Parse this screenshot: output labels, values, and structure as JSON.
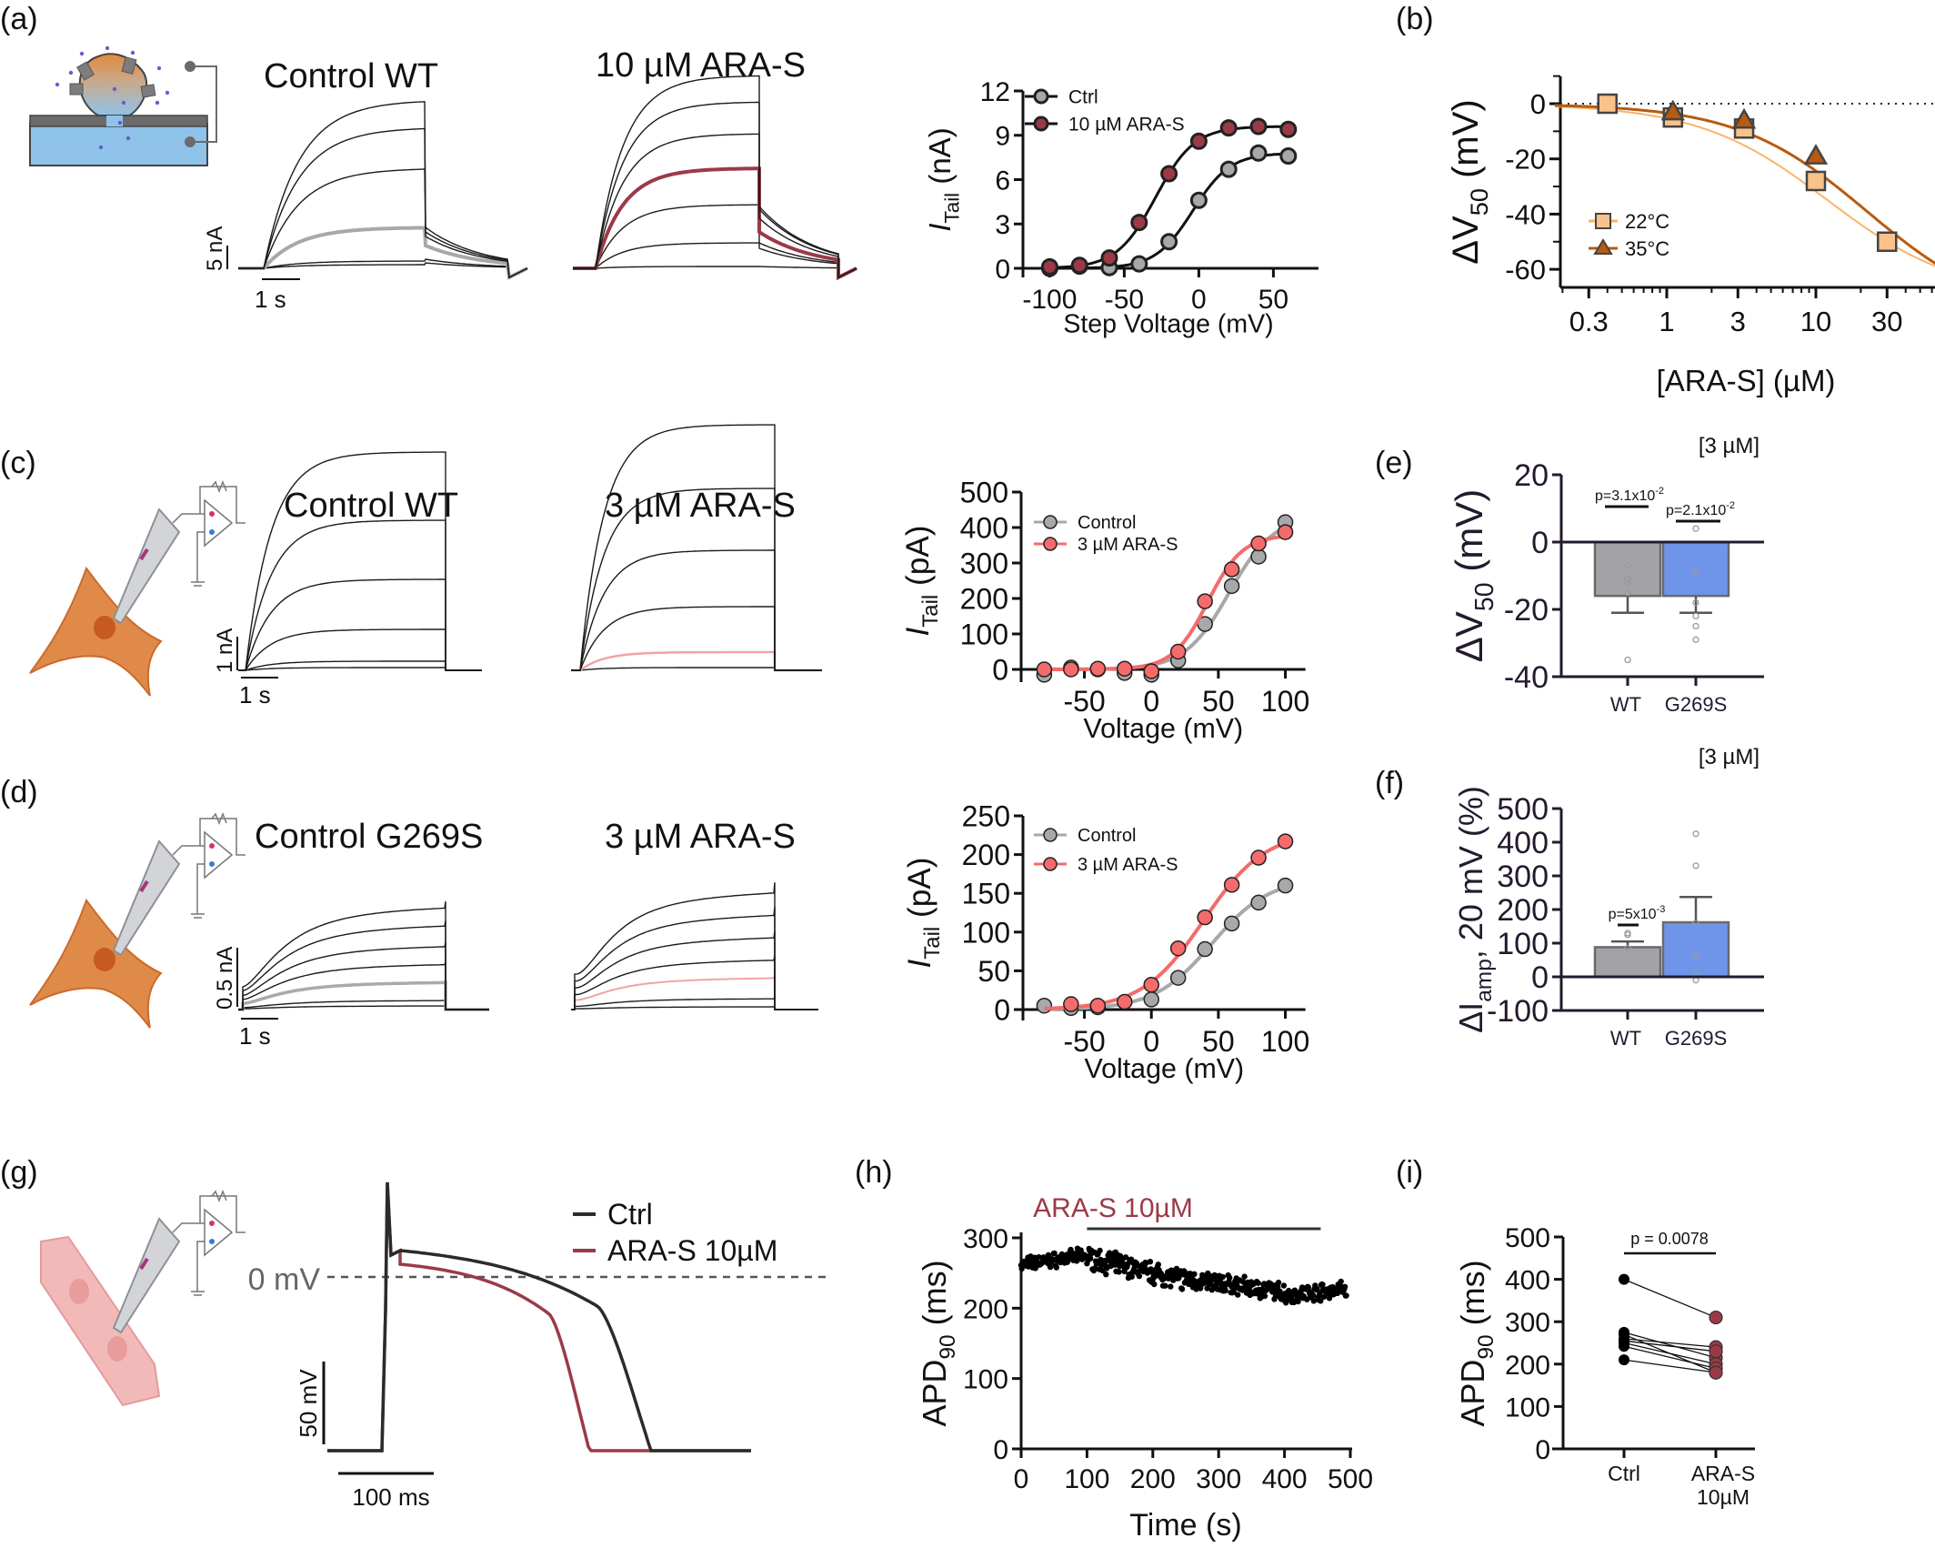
{
  "figure": {
    "panel_labels": [
      "(a)",
      "(b)",
      "(c)",
      "(d)",
      "(e)",
      "(f)",
      "(g)",
      "(h)",
      "(i)"
    ]
  },
  "colors": {
    "ctrl_gray": "#a8a8aa",
    "ara_maroon": "#9b3a47",
    "ara_pink": "#f46b6b",
    "temp22": "#f8c28a",
    "temp35": "#b85a10",
    "temp22_line": "#f9b36a",
    "temp35_line": "#b85a10",
    "bar_wt": "#a3a2a6",
    "bar_g269s": "#6f95ea",
    "axis_dark": "#231a2e",
    "cell_orange": "#e08a4a",
    "cardio_pink": "#f2b9b9"
  },
  "traces": {
    "a_left_title": "Control WT",
    "a_right_title": "10 µM ARA-S",
    "a_scale_y": "5 nA",
    "a_scale_x": "1 s",
    "c_left_title": "Control WT",
    "c_right_title": "3 µM ARA-S",
    "c_scale_y": "1 nA",
    "c_scale_x": "1 s",
    "d_left_title": "Control G269S",
    "d_right_title": "3 µM ARA-S",
    "d_scale_y": "0.5 nA",
    "d_scale_x": "1 s"
  },
  "chart_data": [
    {
      "id": "a_iv",
      "type": "scatter",
      "title": "",
      "xlabel": "Step Voltage (mV)",
      "ylabel_main": "I",
      "ylabel_sub": "Tail",
      "ylabel_unit": " (nA)",
      "xlim": [
        -110,
        65
      ],
      "ylim": [
        0,
        12
      ],
      "xticks": [
        -100,
        -50,
        0,
        50
      ],
      "yticks": [
        0,
        3,
        6,
        9,
        12
      ],
      "x": [
        -100,
        -80,
        -60,
        -40,
        -20,
        0,
        20,
        40,
        60
      ],
      "legend_position": "top-left",
      "series": [
        {
          "name": "Ctrl",
          "color_key": "ctrl_gray",
          "values": [
            0.0,
            0.15,
            0.05,
            0.3,
            1.8,
            4.6,
            6.7,
            7.8,
            7.6
          ]
        },
        {
          "name": "10 µM ARA-S",
          "color_key": "ara_maroon",
          "values": [
            0.1,
            0.2,
            0.7,
            3.1,
            6.4,
            8.6,
            9.5,
            9.6,
            9.4
          ]
        }
      ]
    },
    {
      "id": "b_dose",
      "type": "scatter",
      "xscale": "log",
      "xlabel": "[ARA-S] (µM)",
      "ylabel_main": "ΔV",
      "ylabel_sub": "50",
      "ylabel_unit": " (mV)",
      "xlim": [
        0.19,
        63
      ],
      "ylim": [
        -65,
        10
      ],
      "xticks": [
        0.3,
        1,
        3,
        10,
        30
      ],
      "xtick_labels": [
        "0.3",
        "1",
        "3",
        "10",
        "30"
      ],
      "yticks": [
        0,
        -20,
        -40,
        -60
      ],
      "reference_line": 0,
      "legend_position": "bottom-left",
      "series": [
        {
          "name": "22°C",
          "marker": "square",
          "color_key": "temp22",
          "x": [
            0.4,
            1.1,
            3.3,
            10,
            30
          ],
          "values": [
            0,
            -5,
            -9,
            -28,
            -50
          ],
          "fit": {
            "ic50": 12,
            "max": -70,
            "hill": 1.0
          }
        },
        {
          "name": "35°C",
          "marker": "triangle",
          "color_key": "temp35",
          "x": [
            1.1,
            3.3,
            10
          ],
          "values": [
            -3,
            -6,
            -19
          ],
          "fit": {
            "ic50": 22,
            "max": -78,
            "hill": 1.0
          }
        }
      ]
    },
    {
      "id": "c_iv",
      "type": "scatter",
      "xlabel": "Voltage (mV)",
      "ylabel_main": "I",
      "ylabel_sub": "Tail",
      "ylabel_unit": " (pA)",
      "xlim": [
        -85,
        115
      ],
      "ylim": [
        0,
        500
      ],
      "xticks": [
        -50,
        0,
        50,
        100
      ],
      "yticks": [
        0,
        100,
        200,
        300,
        400,
        500
      ],
      "x": [
        -80,
        -60,
        -40,
        -20,
        0,
        20,
        40,
        60,
        80,
        100
      ],
      "legend_position": "top-left",
      "series": [
        {
          "name": "Control",
          "color_key": "ctrl_gray",
          "values": [
            -15,
            5,
            0,
            -10,
            -15,
            25,
            128,
            235,
            318,
            415
          ]
        },
        {
          "name": "3 µM ARA-S",
          "color_key": "ara_pink",
          "values": [
            0,
            0,
            2,
            2,
            -5,
            50,
            192,
            282,
            355,
            387
          ]
        }
      ]
    },
    {
      "id": "d_iv",
      "type": "scatter",
      "xlabel": "Voltage (mV)",
      "ylabel_main": "I",
      "ylabel_sub": "Tail",
      "ylabel_unit": " (pA)",
      "xlim": [
        -85,
        115
      ],
      "ylim": [
        0,
        250
      ],
      "xticks": [
        -50,
        0,
        50,
        100
      ],
      "yticks": [
        0,
        50,
        100,
        150,
        200,
        250
      ],
      "x": [
        -80,
        -60,
        -40,
        -20,
        0,
        20,
        40,
        60,
        80,
        100
      ],
      "legend_position": "top-left",
      "series": [
        {
          "name": "Control",
          "color_key": "ctrl_gray",
          "values": [
            5,
            2,
            3,
            null,
            13,
            41,
            78,
            111,
            138,
            160
          ]
        },
        {
          "name": "3 µM ARA-S",
          "color_key": "ara_pink",
          "values": [
            null,
            7,
            5,
            10,
            32,
            79,
            119,
            161,
            196,
            217
          ]
        }
      ]
    },
    {
      "id": "e_bar",
      "type": "bar",
      "title": "[3 µM]",
      "ylabel_main": "ΔV",
      "ylabel_sub": "50",
      "ylabel_unit": " (mV)",
      "ylim": [
        -40,
        20
      ],
      "yticks": [
        20,
        0,
        -20,
        -40
      ],
      "categories": [
        "WT",
        "G269S"
      ],
      "values": [
        -16,
        -16
      ],
      "errors": [
        5,
        5
      ],
      "points": [
        [
          -7,
          -11,
          -12,
          -15,
          -35
        ],
        [
          4,
          -9,
          -18,
          -22,
          -25,
          -29
        ]
      ],
      "annotations": [
        "p=3.1x10",
        "p=2.1x10"
      ],
      "annotation_exp": [
        "-2",
        "-2"
      ]
    },
    {
      "id": "f_bar",
      "type": "bar",
      "title": "[3 µM]",
      "ylabel_main": "ΔI",
      "ylabel_sub": "amp",
      "ylabel_unit": ", 20 mV (%)",
      "ylim": [
        -100,
        500
      ],
      "yticks": [
        500,
        400,
        300,
        200,
        100,
        0,
        -100
      ],
      "categories": [
        "WT",
        "G269S"
      ],
      "values": [
        88,
        162
      ],
      "errors": [
        17,
        75
      ],
      "points": [
        [
          125,
          130,
          85
        ],
        [
          425,
          330,
          160,
          62,
          8,
          -10
        ]
      ],
      "annotations": [
        "p=5x10"
      ],
      "annotation_exp": [
        "-3"
      ]
    },
    {
      "id": "g_ap",
      "type": "line",
      "legend_position": "top-right",
      "zero_label": "0 mV",
      "scale_y": "50 mV",
      "scale_x": "100 ms",
      "series": [
        {
          "name": "Ctrl",
          "color": "#2b2b2b",
          "apd90_ms": 270
        },
        {
          "name": "ARA-S 10µM",
          "color_key": "ara_maroon",
          "apd90_ms": 210
        }
      ]
    },
    {
      "id": "h_time",
      "type": "scatter",
      "xlabel": "Time (s)",
      "ylabel_main": "APD",
      "ylabel_sub": "90",
      "ylabel_unit": " (ms)",
      "xlim": [
        0,
        500
      ],
      "ylim": [
        0,
        300
      ],
      "xticks": [
        0,
        100,
        200,
        300,
        400,
        500
      ],
      "yticks": [
        0,
        100,
        200,
        300
      ],
      "treatment_label": "ARA-S 10µM",
      "treatment_range": [
        100,
        455
      ],
      "segments": [
        {
          "t": [
            0,
            100
          ],
          "mean_start": 262,
          "mean_end": 275,
          "spread": 12
        },
        {
          "t": [
            100,
            250
          ],
          "mean_start": 272,
          "mean_end": 240,
          "spread": 18
        },
        {
          "t": [
            250,
            400
          ],
          "mean_start": 242,
          "mean_end": 222,
          "spread": 16
        },
        {
          "t": [
            400,
            495
          ],
          "mean_start": 218,
          "mean_end": 228,
          "spread": 14
        }
      ],
      "n_points": 480
    },
    {
      "id": "i_paired",
      "type": "scatter",
      "ylabel_main": "APD",
      "ylabel_sub": "90",
      "ylabel_unit": " (ms)",
      "ylim": [
        0,
        500
      ],
      "yticks": [
        0,
        100,
        200,
        300,
        400,
        500
      ],
      "categories": [
        "Ctrl",
        "ARA-S\n10µM"
      ],
      "category_lines": [
        [
          "Ctrl"
        ],
        [
          "ARA-S",
          "10µM"
        ]
      ],
      "annotation": "p = 0.0078",
      "pairs": [
        [
          400,
          310
        ],
        [
          275,
          215
        ],
        [
          270,
          180
        ],
        [
          260,
          240
        ],
        [
          255,
          230
        ],
        [
          250,
          200
        ],
        [
          242,
          190
        ],
        [
          210,
          180
        ]
      ]
    }
  ]
}
